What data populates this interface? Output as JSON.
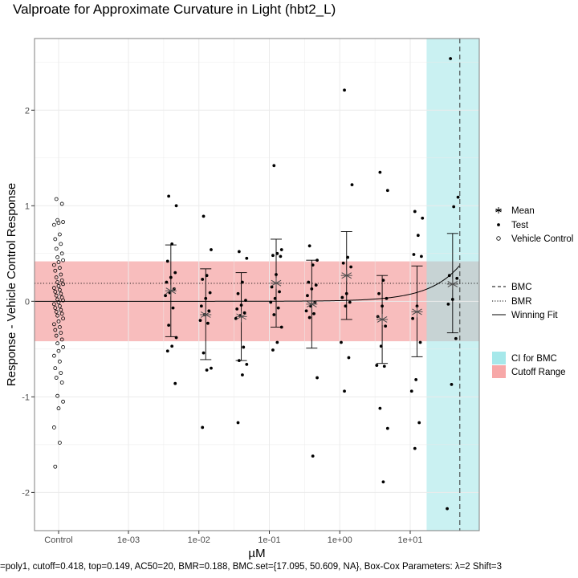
{
  "title": "Valproate for Approximate Curvature in Light (hbt2_L)",
  "footnote": "=poly1, cutoff=0.418, top=0.149, AC50=20, BMR=0.188, BMC.set={17.095, 50.609, NA}, Box-Cox Parameters: λ=2 Shift=3",
  "colors": {
    "ci_band": "#bfeeee",
    "cutoff_band": "#f7b6b6",
    "panel_border": "#7f7f7f",
    "grid": "#ebebeb"
  },
  "legend": {
    "points": [
      {
        "label": "Mean",
        "icon": "asterisk-icon"
      },
      {
        "label": "Test",
        "icon": "dot-icon"
      },
      {
        "label": "Vehicle Control",
        "icon": "open-circle-icon"
      }
    ],
    "lines": [
      {
        "label": "BMC",
        "style": "dashed"
      },
      {
        "label": "BMR",
        "style": "dotted"
      },
      {
        "label": "Winning Fit",
        "style": "solid"
      }
    ],
    "fills": [
      {
        "label": "CI for BMC",
        "color": "#a6e8ea"
      },
      {
        "label": "Cutoff Range",
        "color": "#f7a8a8"
      }
    ]
  },
  "chart_data": {
    "type": "scatter",
    "title": "Valproate for Approximate Curvature in Light (hbt2_L)",
    "xlabel": "µM",
    "ylabel": "Response - Vehicle Control Response",
    "x_scale": "log10",
    "x_tick_labels": [
      "Control",
      "1e-03",
      "1e-02",
      "1e-01",
      "1e+00",
      "1e+01"
    ],
    "x_tick_values": [
      null,
      0.001,
      0.01,
      0.1,
      1,
      10
    ],
    "y_ticks": [
      -2,
      -1,
      0,
      1,
      2
    ],
    "ylim": [
      -2.4,
      2.75
    ],
    "grid": true,
    "legend_position": "right",
    "cutoff_range": [
      -0.418,
      0.418
    ],
    "bmr": 0.188,
    "bmc": 50.609,
    "bmc_ci": [
      17.095,
      null
    ],
    "fit": {
      "model": "poly1",
      "top": 0.149,
      "ac50": 20
    },
    "means": [
      {
        "conc": 0.004,
        "mean": 0.11,
        "lo": -0.37,
        "hi": 0.59
      },
      {
        "conc": 0.0125,
        "mean": -0.14,
        "lo": -0.61,
        "hi": 0.34
      },
      {
        "conc": 0.04,
        "mean": -0.16,
        "lo": -0.62,
        "hi": 0.3
      },
      {
        "conc": 0.125,
        "mean": 0.19,
        "lo": -0.27,
        "hi": 0.65
      },
      {
        "conc": 0.4,
        "mean": -0.03,
        "lo": -0.49,
        "hi": 0.43
      },
      {
        "conc": 1.25,
        "mean": 0.27,
        "lo": -0.19,
        "hi": 0.73
      },
      {
        "conc": 4,
        "mean": -0.19,
        "lo": -0.65,
        "hi": 0.27
      },
      {
        "conc": 12.5,
        "mean": -0.11,
        "lo": -0.58,
        "hi": 0.37
      },
      {
        "conc": 40,
        "mean": 0.18,
        "lo": -0.33,
        "hi": 0.71
      }
    ],
    "test_points": [
      {
        "conc": 0.004,
        "y": [
          1.1,
          1.0,
          0.6,
          0.42,
          0.3,
          0.25,
          0.2,
          0.13,
          0.09,
          0.06,
          -0.07,
          -0.25,
          -0.38,
          -0.47,
          -0.52,
          -0.86
        ]
      },
      {
        "conc": 0.0125,
        "y": [
          0.89,
          0.54,
          0.27,
          0.23,
          0.09,
          0.03,
          -0.05,
          -0.1,
          -0.14,
          -0.2,
          -0.23,
          -0.54,
          -0.7,
          -0.72,
          -1.32
        ]
      },
      {
        "conc": 0.04,
        "y": [
          0.52,
          0.45,
          0.2,
          0.08,
          0.01,
          -0.04,
          -0.08,
          -0.12,
          -0.15,
          -0.18,
          -0.48,
          -0.62,
          -0.66,
          -0.77,
          -1.27
        ]
      },
      {
        "conc": 0.125,
        "y": [
          1.42,
          0.54,
          0.5,
          0.48,
          0.47,
          0.28,
          0.15,
          0.1,
          0.03,
          -0.01,
          -0.07,
          -0.14,
          -0.27,
          -0.43,
          -0.51
        ]
      },
      {
        "conc": 0.4,
        "y": [
          0.58,
          0.43,
          0.38,
          0.2,
          0.17,
          0.13,
          0.06,
          -0.01,
          -0.05,
          -0.1,
          -0.13,
          -0.17,
          -0.8,
          -1.62
        ]
      },
      {
        "conc": 1.25,
        "y": [
          2.21,
          1.22,
          0.46,
          0.4,
          0.36,
          0.08,
          0.04,
          -0.01,
          -0.05,
          -0.43,
          -0.59,
          -0.94
        ]
      },
      {
        "conc": 4,
        "y": [
          1.35,
          1.16,
          0.22,
          0.08,
          0.03,
          -0.05,
          -0.16,
          -0.26,
          -0.47,
          -0.67,
          -0.68,
          -1.12,
          -1.33,
          -1.89
        ]
      },
      {
        "conc": 12.5,
        "y": [
          0.94,
          0.87,
          0.69,
          0.49,
          0.47,
          -0.05,
          -0.18,
          -0.43,
          -0.82,
          -0.94,
          -1.27,
          -1.54
        ]
      },
      {
        "conc": 40,
        "y": [
          2.54,
          1.09,
          0.99,
          0.27,
          0.24,
          0.02,
          -0.03,
          -0.39,
          -0.87,
          -2.17
        ]
      }
    ],
    "vehicle_control": [
      1.07,
      1.02,
      0.85,
      0.83,
      0.82,
      0.8,
      0.7,
      0.65,
      0.6,
      0.55,
      0.5,
      0.46,
      0.43,
      0.41,
      0.38,
      0.35,
      0.32,
      0.28,
      0.25,
      0.22,
      0.2,
      0.18,
      0.16,
      0.14,
      0.12,
      0.1,
      0.08,
      0.06,
      0.04,
      0.02,
      0.01,
      -0.01,
      -0.03,
      -0.05,
      -0.07,
      -0.09,
      -0.11,
      -0.13,
      -0.15,
      -0.18,
      -0.21,
      -0.24,
      -0.27,
      -0.3,
      -0.33,
      -0.36,
      -0.4,
      -0.44,
      -0.48,
      -0.52,
      -0.57,
      -0.63,
      -0.7,
      -0.75,
      -0.8,
      -0.85,
      -0.99,
      -1.05,
      -1.12,
      -1.32,
      -1.48,
      -1.73
    ]
  }
}
